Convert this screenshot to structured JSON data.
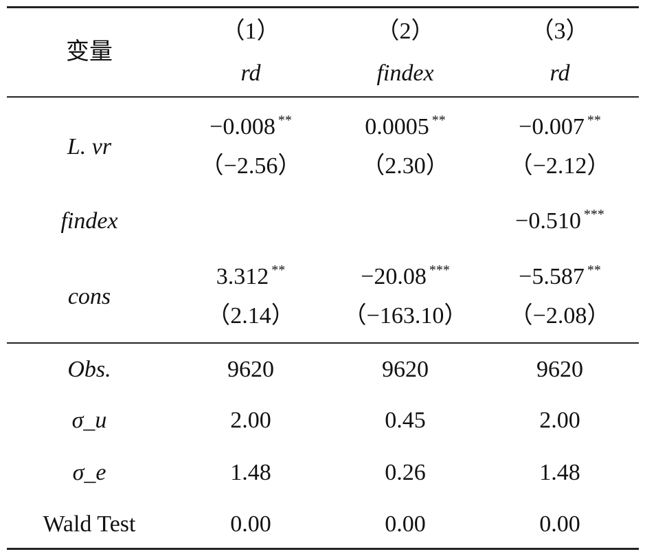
{
  "table": {
    "header": {
      "variable": "变量",
      "columns": [
        {
          "number": "（1）",
          "dependent": "rd"
        },
        {
          "number": "（2）",
          "dependent": "findex"
        },
        {
          "number": "（3）",
          "dependent": "rd"
        }
      ]
    },
    "rows": [
      {
        "label": "L. vr",
        "cells": [
          {
            "coef": "−0.008",
            "stars": "**",
            "t": "（−2.56）"
          },
          {
            "coef": "0.0005",
            "stars": "**",
            "t": "（2.30）"
          },
          {
            "coef": "−0.007",
            "stars": "**",
            "t": "（−2.12）"
          }
        ]
      },
      {
        "label": "findex",
        "cells": [
          null,
          null,
          {
            "coef": "−0.510",
            "stars": "***"
          }
        ]
      },
      {
        "label": "cons",
        "cells": [
          {
            "coef": "3.312",
            "stars": "**",
            "t": "（2.14）"
          },
          {
            "coef": "−20.08",
            "stars": "***",
            "t": "（−163.10）"
          },
          {
            "coef": "−5.587",
            "stars": "**",
            "t": "（−2.08）"
          }
        ]
      }
    ],
    "stats": [
      {
        "label": "Obs.",
        "values": [
          "9620",
          "9620",
          "9620"
        ]
      },
      {
        "label": "σ_u",
        "values": [
          "2.00",
          "0.45",
          "2.00"
        ]
      },
      {
        "label": "σ_e",
        "values": [
          "1.48",
          "0.26",
          "1.48"
        ]
      },
      {
        "label": "Wald Test",
        "values": [
          "0.00",
          "0.00",
          "0.00"
        ]
      }
    ]
  }
}
